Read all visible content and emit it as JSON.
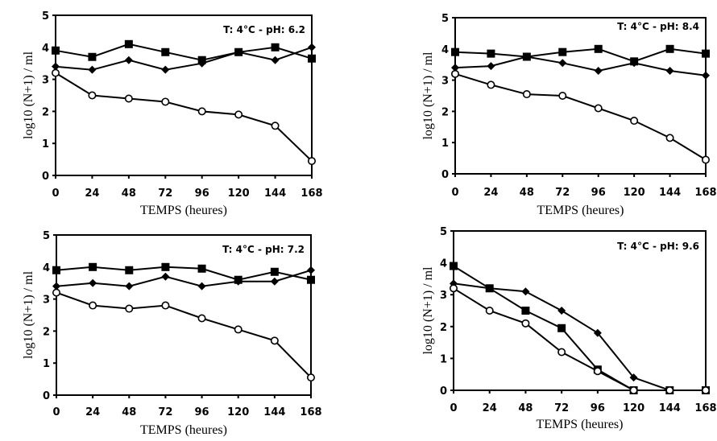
{
  "chart_data": [
    {
      "type": "line",
      "condition": {
        "temp_label": "T:",
        "temp_value": "4°C",
        "sep": "-",
        "ph_label": "pH:",
        "ph_value": "6.2"
      },
      "xlabel": "TEMPS (heures)",
      "ylabel": "log10 (N+1) / ml",
      "x": [
        0,
        24,
        48,
        72,
        96,
        120,
        144,
        168
      ],
      "x_tick_labels": [
        "0",
        "24",
        "48",
        "72",
        "96",
        "120",
        "144",
        "168"
      ],
      "y_tick_labels": [
        "0",
        "1",
        "2",
        "3",
        "4",
        "5"
      ],
      "xlim": [
        0,
        168
      ],
      "ylim": [
        0,
        5
      ],
      "series": [
        {
          "marker": "square",
          "values": [
            3.9,
            3.7,
            4.1,
            3.85,
            3.6,
            3.85,
            4.0,
            3.65
          ]
        },
        {
          "marker": "diamond",
          "values": [
            3.4,
            3.3,
            3.6,
            3.3,
            3.5,
            3.85,
            3.6,
            4.0
          ]
        },
        {
          "marker": "open-circle",
          "values": [
            3.2,
            2.5,
            2.4,
            2.3,
            2.0,
            1.9,
            1.55,
            0.45
          ]
        }
      ]
    },
    {
      "type": "line",
      "condition": {
        "temp_label": "T:",
        "temp_value": "4°C",
        "sep": "-",
        "ph_label": "pH:",
        "ph_value": "8.4"
      },
      "xlabel": "TEMPS (heures)",
      "ylabel": "log10 (N+1) / ml",
      "x": [
        0,
        24,
        48,
        72,
        96,
        120,
        144,
        168
      ],
      "x_tick_labels": [
        "0",
        "24",
        "48",
        "72",
        "96",
        "120",
        "144",
        "168"
      ],
      "y_tick_labels": [
        "0",
        "1",
        "2",
        "3",
        "4",
        "5"
      ],
      "xlim": [
        0,
        168
      ],
      "ylim": [
        0,
        5
      ],
      "series": [
        {
          "marker": "square",
          "values": [
            3.9,
            3.85,
            3.75,
            3.9,
            4.0,
            3.6,
            4.0,
            3.85
          ]
        },
        {
          "marker": "diamond",
          "values": [
            3.4,
            3.45,
            3.75,
            3.55,
            3.3,
            3.55,
            3.3,
            3.15
          ]
        },
        {
          "marker": "open-circle",
          "values": [
            3.2,
            2.85,
            2.55,
            2.5,
            2.1,
            1.7,
            1.15,
            0.45
          ]
        }
      ]
    },
    {
      "type": "line",
      "condition": {
        "temp_label": "T:",
        "temp_value": "4°C",
        "sep": "-",
        "ph_label": "pH:",
        "ph_value": "7.2"
      },
      "xlabel": "TEMPS (heures)",
      "ylabel": "log10 (N+1) / ml",
      "x": [
        0,
        24,
        48,
        72,
        96,
        120,
        144,
        168
      ],
      "x_tick_labels": [
        "0",
        "24",
        "48",
        "72",
        "96",
        "120",
        "144",
        "168"
      ],
      "y_tick_labels": [
        "0",
        "1",
        "2",
        "3",
        "4",
        "5"
      ],
      "xlim": [
        0,
        168
      ],
      "ylim": [
        0,
        5
      ],
      "series": [
        {
          "marker": "square",
          "values": [
            3.9,
            4.0,
            3.9,
            4.0,
            3.95,
            3.6,
            3.85,
            3.6
          ]
        },
        {
          "marker": "diamond",
          "values": [
            3.4,
            3.5,
            3.4,
            3.7,
            3.4,
            3.55,
            3.55,
            3.9
          ]
        },
        {
          "marker": "open-circle",
          "values": [
            3.2,
            2.8,
            2.7,
            2.8,
            2.4,
            2.05,
            1.7,
            0.55
          ]
        }
      ]
    },
    {
      "type": "line",
      "condition": {
        "temp_label": "T:",
        "temp_value": "4°C",
        "sep": "-",
        "ph_label": "pH:",
        "ph_value": "9.6"
      },
      "xlabel": "TEMPS (heures)",
      "ylabel": "log10 (N+1) / ml",
      "x": [
        0,
        24,
        48,
        72,
        96,
        120,
        144,
        168
      ],
      "x_tick_labels": [
        "0",
        "24",
        "48",
        "72",
        "96",
        "120",
        "144",
        "168"
      ],
      "y_tick_labels": [
        "0",
        "1",
        "2",
        "3",
        "4",
        "5"
      ],
      "xlim": [
        0,
        168
      ],
      "ylim": [
        0,
        5
      ],
      "series": [
        {
          "marker": "square",
          "values": [
            3.9,
            3.2,
            2.5,
            1.95,
            0.65,
            0.0,
            0.0,
            0.0
          ]
        },
        {
          "marker": "diamond",
          "values": [
            3.35,
            3.2,
            3.1,
            2.5,
            1.8,
            0.4,
            0.0,
            0.0
          ]
        },
        {
          "marker": "open-circle",
          "values": [
            3.2,
            2.5,
            2.1,
            1.2,
            0.6,
            0.0,
            0.0,
            0.0
          ]
        }
      ]
    }
  ]
}
